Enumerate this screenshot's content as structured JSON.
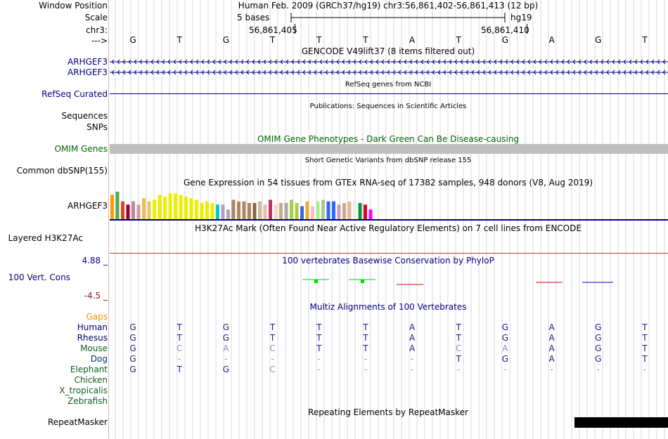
{
  "labels": {
    "window_position": "Window Position",
    "scale": "Scale",
    "chrom": "chr3:",
    "arrow": "--->",
    "arhgef3_a": "ARHGEF3",
    "arhgef3_b": "ARHGEF3",
    "refseq": "RefSeq Curated",
    "sequences": "Sequences",
    "snps": "SNPs",
    "omim": "OMIM Genes",
    "common_dbsnp": "Common dbSNP(155)",
    "gtex": "ARHGEF3",
    "h3k27ac": "Layered H3K27Ac",
    "phylop_max": "4.88 _",
    "phylop": "100 Vert. Cons",
    "phylop_min": "-4.5 _",
    "gaps": "Gaps",
    "repeatmasker": "RepeatMasker"
  },
  "header": {
    "window_text": "Human Feb. 2009 (GRCh37/hg19)   chr3:56,861,402-56,861,413 (12 bp)",
    "scale_text": "5 bases",
    "assembly": "hg19",
    "pos1": "56,861,405",
    "pos2": "56,861,410"
  },
  "sequence": [
    "G",
    "T",
    "G",
    "T",
    "T",
    "T",
    "A",
    "T",
    "G",
    "A",
    "G",
    "T"
  ],
  "tracks": {
    "gencode_title": "GENCODE V49lift37 (8 items filtered out)",
    "refseq_title": "RefSeq genes from NCBI",
    "pubs_title": "Publications: Sequences in Scientific Articles",
    "omim_title": "OMIM Gene Phenotypes - Dark Green Can Be Disease-causing",
    "dbsnp_title": "Short Genetic Variants from dbSNP release 155",
    "gtex_title": "Gene Expression in 54 tissues from GTEx RNA-seq of 17382 samples, 948 donors (V8, Aug 2019)",
    "h3k27ac_title": "H3K27Ac Mark (Often Found Near Active Regulatory Elements) on 7 cell lines from ENCODE",
    "phylop_title": "100 vertebrates Basewise Conservation by PhyloP",
    "multiz_title": "Multiz Alignments of 100 Vertebrates",
    "rmsk_title": "Repeating Elements by RepeatMasker"
  },
  "species": [
    {
      "name": "Human",
      "bases": [
        "G",
        "T",
        "G",
        "T",
        "T",
        "T",
        "A",
        "T",
        "G",
        "A",
        "G",
        "T"
      ],
      "dim": [
        0,
        0,
        0,
        0,
        0,
        0,
        0,
        0,
        0,
        0,
        0,
        0
      ]
    },
    {
      "name": "Rhesus",
      "bases": [
        "G",
        "T",
        "G",
        "T",
        "T",
        "T",
        "A",
        "T",
        "G",
        "A",
        "G",
        "T"
      ],
      "dim": [
        0,
        0,
        0,
        0,
        0,
        0,
        0,
        0,
        0,
        0,
        0,
        0
      ]
    },
    {
      "name": "Mouse",
      "bases": [
        "G",
        "C",
        "A",
        "C",
        "T",
        "T",
        "A",
        "C",
        "A",
        "A",
        "G",
        "T"
      ],
      "dim": [
        0,
        1,
        1,
        1,
        0,
        0,
        0,
        1,
        1,
        0,
        0,
        0
      ]
    },
    {
      "name": "Dog",
      "bases": [
        "G",
        "-",
        "-",
        "-",
        "-",
        "-",
        "-",
        "T",
        "G",
        "A",
        "G",
        "T"
      ],
      "dim": [
        0,
        1,
        1,
        1,
        1,
        1,
        1,
        0,
        0,
        0,
        0,
        0
      ]
    },
    {
      "name": "Elephant",
      "bases": [
        "G",
        "T",
        "G",
        "C",
        "-",
        "-",
        "-",
        "-",
        "-",
        "-",
        "-",
        "-"
      ],
      "dim": [
        0,
        0,
        0,
        1,
        1,
        1,
        1,
        1,
        1,
        1,
        1,
        1
      ]
    },
    {
      "name": "Chicken",
      "bases": [],
      "dim": []
    },
    {
      "name": "X_tropicalis",
      "bases": [],
      "dim": []
    },
    {
      "name": "Zebrafish",
      "bases": [],
      "dim": []
    }
  ],
  "gtex_colors": [
    "#ff9900",
    "#55aa55",
    "#dd4422",
    "#990033",
    "#bb8899",
    "#cc99aa",
    "#eebb55",
    "#ddcc66",
    "#eeee00",
    "#eeee00",
    "#eeee00",
    "#eeee00",
    "#eeee00",
    "#eeee00",
    "#eeee00",
    "#eeee00",
    "#eeee00",
    "#eeee00",
    "#eeee00",
    "#eeee00",
    "#00cccc",
    "#bb99cc",
    "#aaaaaa",
    "#aa8866",
    "#aa8866",
    "#aa8866",
    "#aa8866",
    "#886644",
    "#ccbb99",
    "#eebbaa",
    "#bb3366",
    "#eeddcc",
    "#ccaa88",
    "#aaaaaa",
    "#aacc44",
    "#aacc44",
    "#4466dd",
    "#eeaa33",
    "#ffbbcc",
    "#aaee88",
    "#aacc88",
    "#3366ff",
    "#3366ff",
    "#cc99cc",
    "#ccaa88",
    "#ddbb99",
    "#eeeeee",
    "#009933",
    "#dd0033",
    "#ff00ff"
  ],
  "gtex_values": [
    0.75,
    0.85,
    0.55,
    0.45,
    0.55,
    0.45,
    0.65,
    0.55,
    0.6,
    0.75,
    0.7,
    0.8,
    0.8,
    0.75,
    0.7,
    0.65,
    0.6,
    0.5,
    0.55,
    0.5,
    0.45,
    0.45,
    0.3,
    0.6,
    0.55,
    0.55,
    0.5,
    0.5,
    0.55,
    0.45,
    0.6,
    0.45,
    0.5,
    0.5,
    0.6,
    0.5,
    0.4,
    0.55,
    0.4,
    0.55,
    0.6,
    0.55,
    0.55,
    0.45,
    0.5,
    0.55,
    0.55,
    0.5,
    0.45,
    0.3
  ],
  "colors": {
    "omim_bar": "#bfbfbf",
    "refseq_line": "#000080",
    "gencode": "#000080",
    "h3k27ac_line": "#b34a1e",
    "gtex_baseline": "#000080",
    "grid": "#d7d7e6",
    "phylop_pos": "#00dd00",
    "phylop_neg": "#dd0000",
    "phylop_blue": "#0000cc",
    "repeat": "#000000"
  }
}
